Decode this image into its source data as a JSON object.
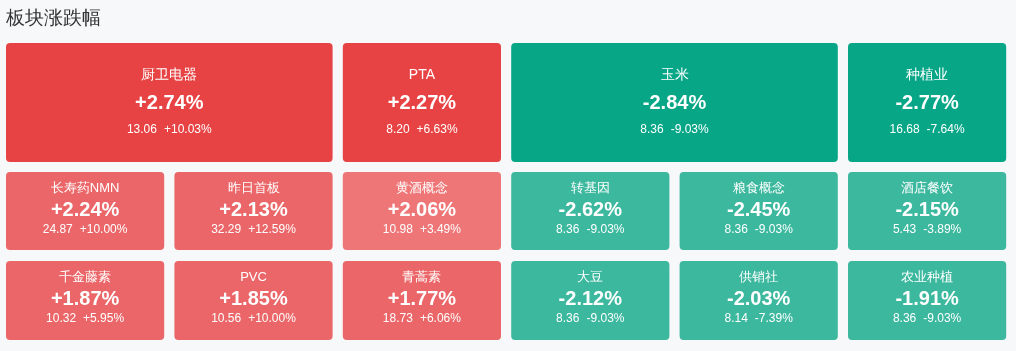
{
  "chart_data": {
    "type": "other",
    "title": "板块涨跌幅",
    "categories": [
      "厨卫电器",
      "PTA",
      "玉米",
      "种植业",
      "长寿药NMN",
      "昨日首板",
      "黄酒概念",
      "转基因",
      "粮食概念",
      "酒店餐饮",
      "千金藤素",
      "PVC",
      "青蒿素",
      "大豆",
      "供销社",
      "农业种植"
    ],
    "series": [
      {
        "colors": [
          "#e84344",
          "#e84344",
          "#06a687",
          "#06a687",
          "#eb6668",
          "#eb6668",
          "#ef7677",
          "#3bb89e",
          "#3bb89e",
          "#3bb89e",
          "#eb6668",
          "#eb6668",
          "#eb6668",
          "#3bb89e",
          "#3bb89e",
          "#3bb89e"
        ],
        "values": [
          2.74,
          2.27,
          -2.84,
          -2.77,
          2.24,
          2.13,
          2.06,
          -2.62,
          -2.45,
          -2.15,
          1.87,
          1.85,
          1.77,
          -2.12,
          -2.03,
          -1.91
        ],
        "value_labels": [
          "+2.74%",
          "+2.27%",
          "-2.84%",
          "-2.77%",
          "+2.24%",
          "+2.13%",
          "+2.06%",
          "-2.62%",
          "-2.45%",
          "-2.15%",
          "+1.87%",
          "+1.85%",
          "+1.77%",
          "-2.12%",
          "-2.03%",
          "-1.91%"
        ]
      },
      {
        "values": [
          13.06,
          8.2,
          8.36,
          16.68,
          24.87,
          32.29,
          10.98,
          8.36,
          8.36,
          5.43,
          10.32,
          10.56,
          18.73,
          8.36,
          8.14,
          8.36
        ],
        "value_labels": [
          "13.06",
          "8.20",
          "8.36",
          "16.68",
          "24.87",
          "32.29",
          "10.98",
          "8.36",
          "8.36",
          "5.43",
          "10.32",
          "10.56",
          "18.73",
          "8.36",
          "8.14",
          "8.36"
        ]
      },
      {
        "values": [
          10.03,
          6.63,
          -9.03,
          -7.64,
          10.0,
          12.59,
          3.49,
          -9.03,
          -9.03,
          -3.89,
          5.95,
          10.0,
          6.06,
          -9.03,
          -7.39,
          -9.03
        ],
        "value_labels": [
          "+10.03%",
          "+6.63%",
          "-9.03%",
          "-7.64%",
          "+10.00%",
          "+12.59%",
          "+3.49%",
          "-9.03%",
          "-9.03%",
          "-3.89%",
          "+5.95%",
          "+10.00%",
          "+6.06%",
          "-9.03%",
          "-7.39%",
          "-9.03%"
        ]
      }
    ]
  }
}
